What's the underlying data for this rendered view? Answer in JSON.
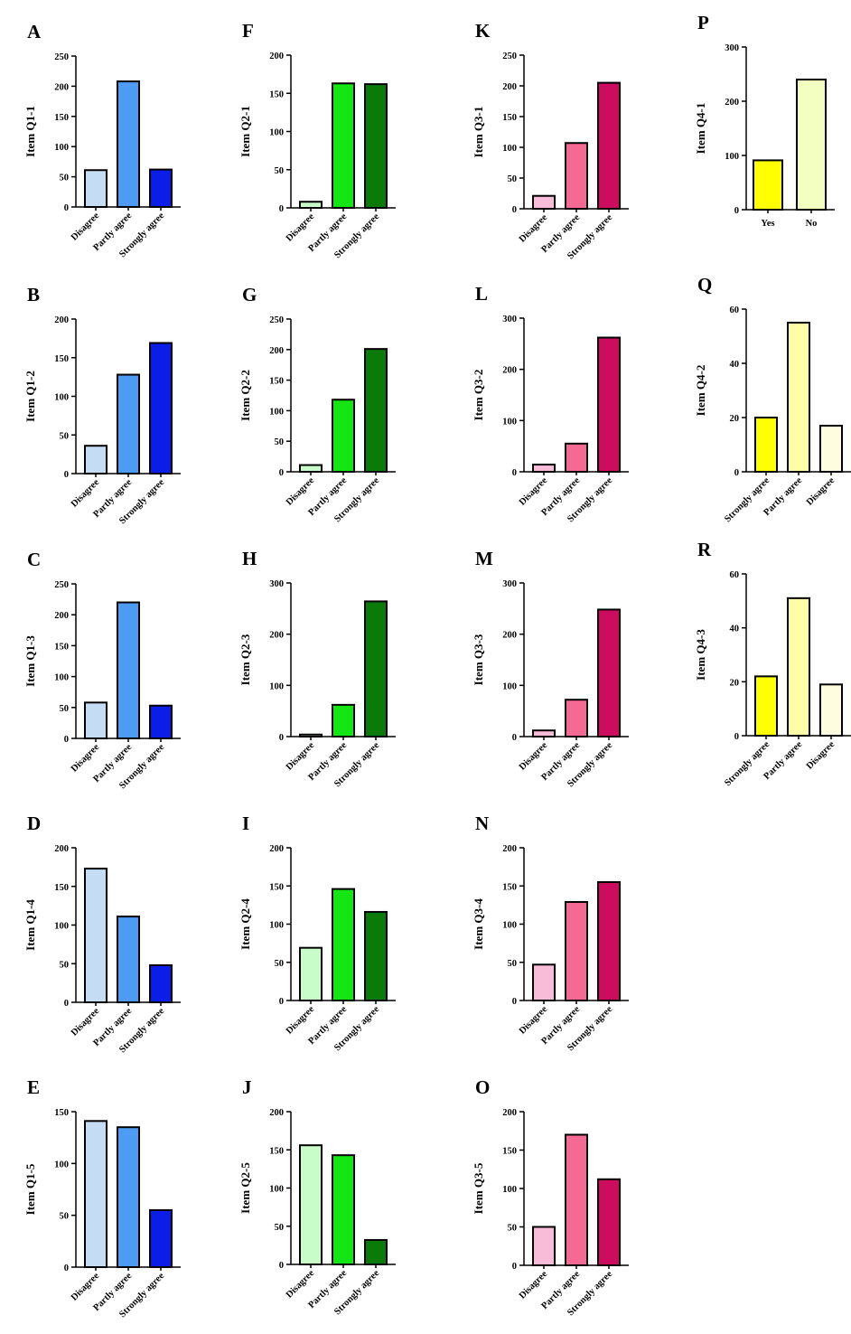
{
  "chart_data": [
    {
      "id": "A",
      "type": "bar",
      "ylabel": "Item Q1-1",
      "categories": [
        "Disagree",
        "Partly agree",
        "Strongly agree"
      ],
      "values": [
        61,
        208,
        62
      ],
      "ylim": [
        0,
        250
      ],
      "yticks": [
        0,
        50,
        100,
        150,
        200,
        250
      ],
      "colors": [
        "#c5dcf5",
        "#4d9bf2",
        "#0a1ee8"
      ]
    },
    {
      "id": "B",
      "type": "bar",
      "ylabel": "Item Q1-2",
      "categories": [
        "Disagree",
        "Partly agree",
        "Strongly agree"
      ],
      "values": [
        36,
        128,
        169
      ],
      "ylim": [
        0,
        200
      ],
      "yticks": [
        0,
        50,
        100,
        150,
        200
      ],
      "colors": [
        "#c5dcf5",
        "#4d9bf2",
        "#0a1ee8"
      ]
    },
    {
      "id": "C",
      "type": "bar",
      "ylabel": "Item Q1-3",
      "categories": [
        "Disagree",
        "Partly agree",
        "Strongly agree"
      ],
      "values": [
        58,
        220,
        53
      ],
      "ylim": [
        0,
        250
      ],
      "yticks": [
        0,
        50,
        100,
        150,
        200,
        250
      ],
      "colors": [
        "#c5dcf5",
        "#4d9bf2",
        "#0a1ee8"
      ]
    },
    {
      "id": "D",
      "type": "bar",
      "ylabel": "Item Q1-4",
      "categories": [
        "Disagree",
        "Partly agree",
        "Strongly agree"
      ],
      "values": [
        173,
        111,
        48
      ],
      "ylim": [
        0,
        200
      ],
      "yticks": [
        0,
        50,
        100,
        150,
        200
      ],
      "colors": [
        "#c5dcf5",
        "#4d9bf2",
        "#0a1ee8"
      ]
    },
    {
      "id": "E",
      "type": "bar",
      "ylabel": "Item Q1-5",
      "categories": [
        "Disagree",
        "Partly agree",
        "Strongly agree"
      ],
      "values": [
        141,
        135,
        55
      ],
      "ylim": [
        0,
        150
      ],
      "yticks": [
        0,
        50,
        100,
        150
      ],
      "colors": [
        "#c5dcf5",
        "#4d9bf2",
        "#0a1ee8"
      ]
    },
    {
      "id": "F",
      "type": "bar",
      "ylabel": "Item Q2-1",
      "categories": [
        "Disagree",
        "Partly agree",
        "Strongly agree"
      ],
      "values": [
        8,
        163,
        162
      ],
      "ylim": [
        0,
        200
      ],
      "yticks": [
        0,
        50,
        100,
        150,
        200
      ],
      "colors": [
        "#c8fcc8",
        "#14e614",
        "#0a7a0a"
      ]
    },
    {
      "id": "G",
      "type": "bar",
      "ylabel": "Item Q2-2",
      "categories": [
        "Disagree",
        "Partly agree",
        "Strongly agree"
      ],
      "values": [
        11,
        118,
        201
      ],
      "ylim": [
        0,
        250
      ],
      "yticks": [
        0,
        50,
        100,
        150,
        200,
        250
      ],
      "colors": [
        "#c8fcc8",
        "#14e614",
        "#0a7a0a"
      ]
    },
    {
      "id": "H",
      "type": "bar",
      "ylabel": "Item Q2-3",
      "categories": [
        "Disagree",
        "Partly agree",
        "Strongly agree"
      ],
      "values": [
        4,
        62,
        264
      ],
      "ylim": [
        0,
        300
      ],
      "yticks": [
        0,
        100,
        200,
        300
      ],
      "colors": [
        "#c8fcc8",
        "#14e614",
        "#0a7a0a"
      ]
    },
    {
      "id": "I",
      "type": "bar",
      "ylabel": "Item Q2-4",
      "categories": [
        "Disagree",
        "Partly agree",
        "Strongly agree"
      ],
      "values": [
        69,
        146,
        116
      ],
      "ylim": [
        0,
        200
      ],
      "yticks": [
        0,
        50,
        100,
        150,
        200
      ],
      "colors": [
        "#c8fcc8",
        "#14e614",
        "#0a7a0a"
      ]
    },
    {
      "id": "J",
      "type": "bar",
      "ylabel": "Item Q2-5",
      "categories": [
        "Disagree",
        "Partly agree",
        "Strongly agree"
      ],
      "values": [
        156,
        143,
        32
      ],
      "ylim": [
        0,
        200
      ],
      "yticks": [
        0,
        50,
        100,
        150,
        200
      ],
      "colors": [
        "#c8fcc8",
        "#14e614",
        "#0a7a0a"
      ]
    },
    {
      "id": "K",
      "type": "bar",
      "ylabel": "Item Q3-1",
      "categories": [
        "Disagree",
        "Partly agree",
        "Strongly agree"
      ],
      "values": [
        21,
        107,
        205
      ],
      "ylim": [
        0,
        250
      ],
      "yticks": [
        0,
        50,
        100,
        150,
        200,
        250
      ],
      "colors": [
        "#f8bcd8",
        "#f46a94",
        "#cc0c5e"
      ]
    },
    {
      "id": "L",
      "type": "bar",
      "ylabel": "Item Q3-2",
      "categories": [
        "Disagree",
        "Partly agree",
        "Strongly agree"
      ],
      "values": [
        14,
        55,
        262
      ],
      "ylim": [
        0,
        300
      ],
      "yticks": [
        0,
        100,
        200,
        300
      ],
      "colors": [
        "#f8bcd8",
        "#f46a94",
        "#cc0c5e"
      ]
    },
    {
      "id": "M",
      "type": "bar",
      "ylabel": "Item Q3-3",
      "categories": [
        "Disagree",
        "Partly agree",
        "Strongly agree"
      ],
      "values": [
        12,
        72,
        248
      ],
      "ylim": [
        0,
        300
      ],
      "yticks": [
        0,
        100,
        200,
        300
      ],
      "colors": [
        "#f8bcd8",
        "#f46a94",
        "#cc0c5e"
      ]
    },
    {
      "id": "N",
      "type": "bar",
      "ylabel": "Item Q3-4",
      "categories": [
        "Disagree",
        "Partly agree",
        "Strongly agree"
      ],
      "values": [
        47,
        129,
        155
      ],
      "ylim": [
        0,
        200
      ],
      "yticks": [
        0,
        50,
        100,
        150,
        200
      ],
      "colors": [
        "#f8bcd8",
        "#f46a94",
        "#cc0c5e"
      ]
    },
    {
      "id": "O",
      "type": "bar",
      "ylabel": "Item Q3-5",
      "categories": [
        "Disagree",
        "Partly agree",
        "Strongly agree"
      ],
      "values": [
        50,
        170,
        112
      ],
      "ylim": [
        0,
        200
      ],
      "yticks": [
        0,
        50,
        100,
        150,
        200
      ],
      "colors": [
        "#f8bcd8",
        "#f46a94",
        "#cc0c5e"
      ]
    },
    {
      "id": "P",
      "type": "bar",
      "ylabel": "Item Q4-1",
      "categories": [
        "Yes",
        "No"
      ],
      "values": [
        91,
        240
      ],
      "ylim": [
        0,
        300
      ],
      "yticks": [
        0,
        100,
        200,
        300
      ],
      "colors": [
        "#ffff00",
        "#f2ffc0"
      ]
    },
    {
      "id": "Q",
      "type": "bar",
      "ylabel": "Item Q4-2",
      "categories": [
        "Strongly agree",
        "Partly agree",
        "Disagree"
      ],
      "values": [
        20,
        55,
        17
      ],
      "ylim": [
        0,
        60
      ],
      "yticks": [
        0,
        20,
        40,
        60
      ],
      "colors": [
        "#ffff00",
        "#ffffa8",
        "#fffde0"
      ]
    },
    {
      "id": "R",
      "type": "bar",
      "ylabel": "Item Q4-3",
      "categories": [
        "Strongly agree",
        "Partly agree",
        "Disagree"
      ],
      "values": [
        22,
        51,
        19
      ],
      "ylim": [
        0,
        60
      ],
      "yticks": [
        0,
        20,
        40,
        60
      ],
      "colors": [
        "#ffff00",
        "#ffffa8",
        "#fffde0"
      ]
    }
  ]
}
